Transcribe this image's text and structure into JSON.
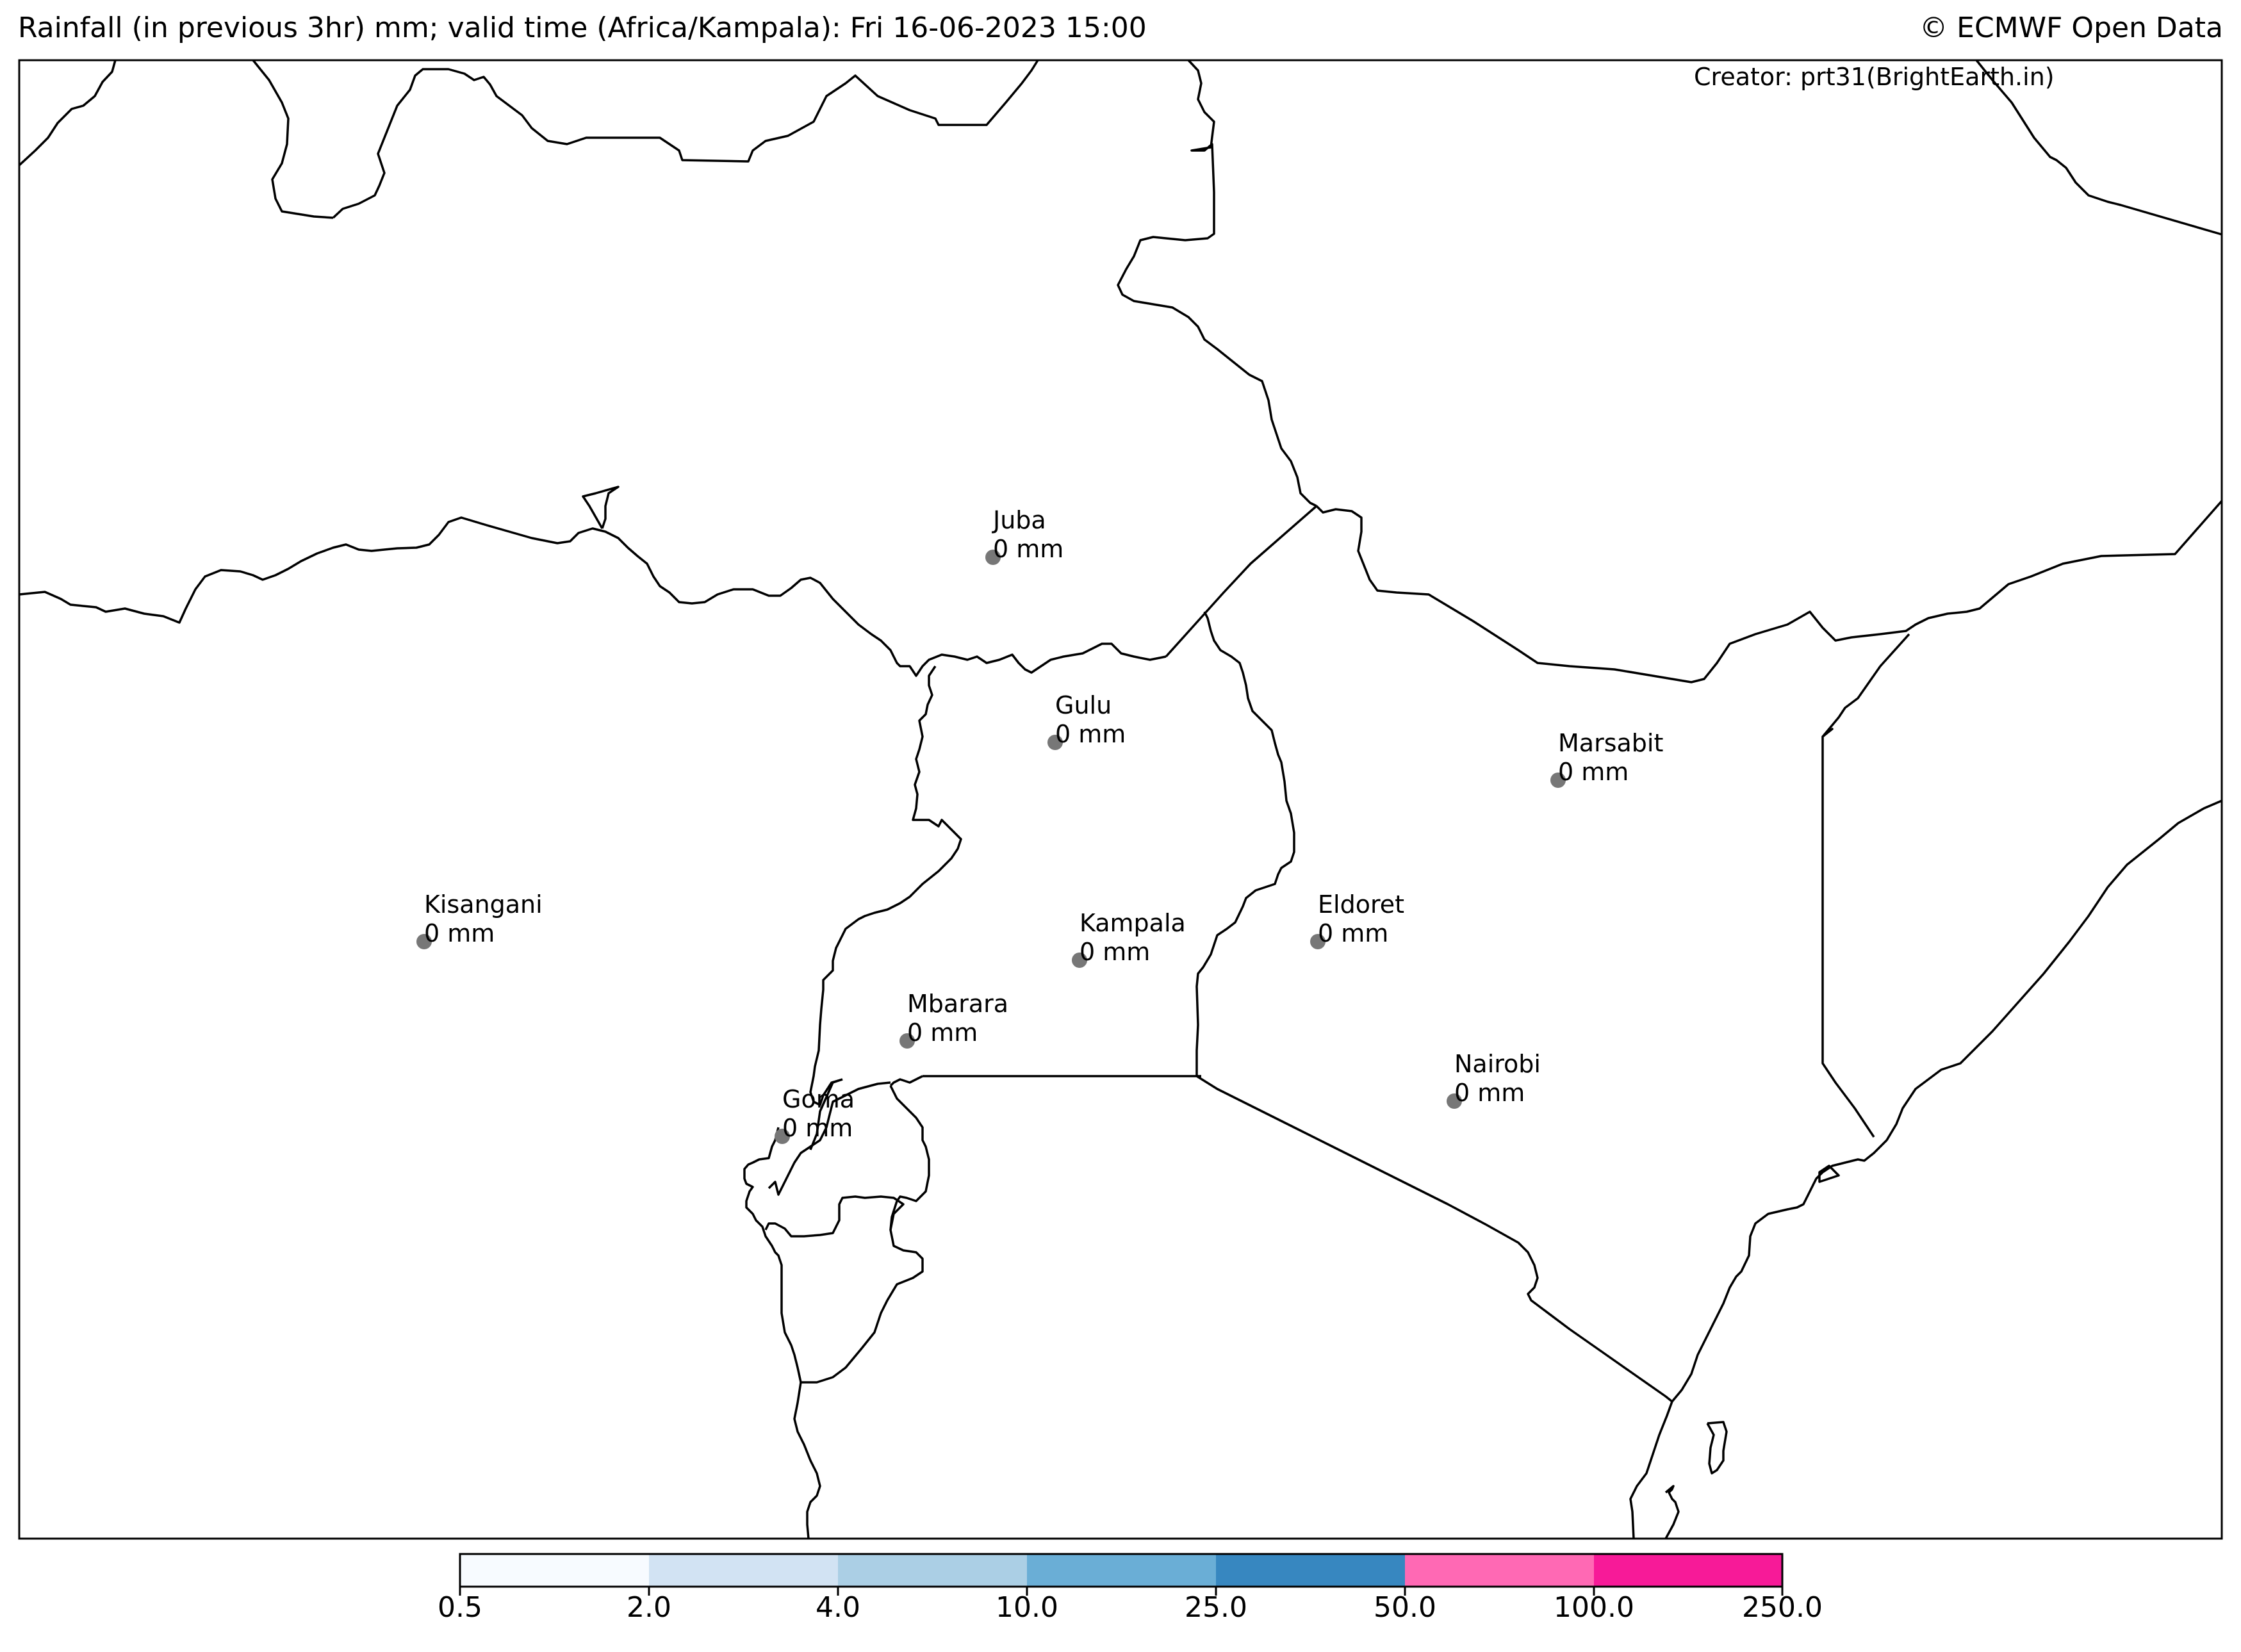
{
  "header": {
    "title": "Rainfall (in previous 3hr) mm; valid time (Africa/Kampala): Fri 16-06-2023 15:00",
    "credit": "© ECMWF Open Data",
    "creator": "Creator: prt31(BrightEarth.in)"
  },
  "cities": [
    {
      "name": "Juba",
      "value": "0 mm"
    },
    {
      "name": "Gulu",
      "value": "0 mm"
    },
    {
      "name": "Marsabit",
      "value": "0 mm"
    },
    {
      "name": "Kisangani",
      "value": "0 mm"
    },
    {
      "name": "Eldoret",
      "value": "0 mm"
    },
    {
      "name": "Kampala",
      "value": "0 mm"
    },
    {
      "name": "Mbarara",
      "value": "0 mm"
    },
    {
      "name": "Nairobi",
      "value": "0 mm"
    },
    {
      "name": "Goma",
      "value": "0 mm"
    }
  ],
  "colorbar": {
    "ticks": [
      "0.5",
      "2.0",
      "4.0",
      "10.0",
      "25.0",
      "50.0",
      "100.0",
      "250.0"
    ],
    "colors": [
      "#f7fbff",
      "#d2e3f3",
      "#abcfe5",
      "#6aaed6",
      "#3787c0",
      "#ff69b4",
      "#f71a98"
    ]
  },
  "style": {
    "border_color": "#000000",
    "marker_color": "#777777"
  }
}
